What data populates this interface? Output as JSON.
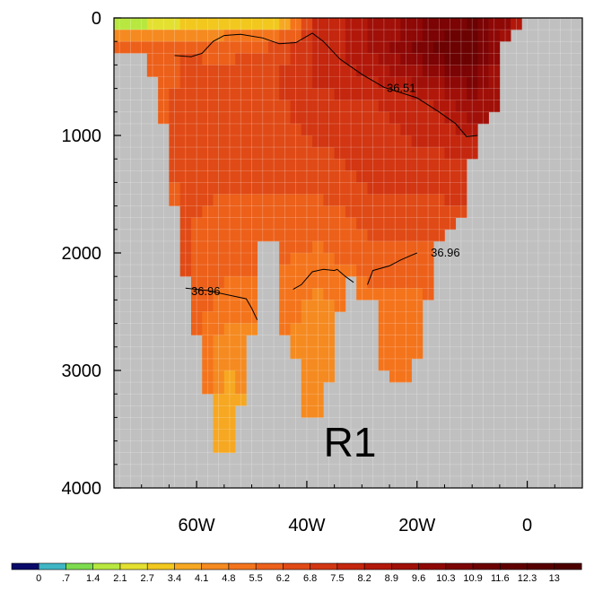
{
  "chart_data": {
    "type": "heatmap",
    "panel_label": "R1",
    "x_axis": {
      "range": [
        -75,
        10
      ],
      "tick_values": [
        -60,
        -40,
        -20,
        0
      ],
      "tick_labels": [
        "60W",
        "40W",
        "20W",
        "0"
      ]
    },
    "y_axis": {
      "range": [
        0,
        4000
      ],
      "inverted": true,
      "tick_values": [
        0,
        1000,
        2000,
        3000,
        4000
      ],
      "tick_labels": [
        "0",
        "1000",
        "2000",
        "3000",
        "4000"
      ]
    },
    "grid": true,
    "missing_color": "#c0c0c0",
    "colorbar": {
      "placement": "bottom",
      "labels": [
        "0",
        ".7",
        "1.4",
        "2.1",
        "2.7",
        "3.4",
        "4.1",
        "4.8",
        "5.5",
        "6.2",
        "6.8",
        "7.5",
        "8.2",
        "8.9",
        "9.6",
        "10.3",
        "10.9",
        "11.6",
        "12.3",
        "13"
      ],
      "colors": [
        "#0a0a6a",
        "#3fb6c4",
        "#7ddb4e",
        "#b8e840",
        "#e4e030",
        "#f2c81e",
        "#f6a822",
        "#f58a20",
        "#f4741c",
        "#ec601a",
        "#e04a16",
        "#d23612",
        "#c4260e",
        "#b2180a",
        "#a01008",
        "#8e0806",
        "#7c0404",
        "#6c0202",
        "#600000",
        "#560000",
        "#4c0000"
      ]
    },
    "depth_profile": [
      {
        "lon": -69,
        "max_depth": 250
      },
      {
        "lon": -66,
        "max_depth": 850
      },
      {
        "lon": -63,
        "max_depth": 1900
      },
      {
        "lon": -60,
        "max_depth": 2650
      },
      {
        "lon": -58,
        "max_depth": 3200
      },
      {
        "lon": -56,
        "max_depth": 3650
      },
      {
        "lon": -53,
        "max_depth": 3650
      },
      {
        "lon": -50,
        "max_depth": 2650
      },
      {
        "lon": -48,
        "max_depth": 1900
      },
      {
        "lon": -46,
        "max_depth": 1900
      },
      {
        "lon": -44,
        "max_depth": 2650
      },
      {
        "lon": -42,
        "max_depth": 2850
      },
      {
        "lon": -41,
        "max_depth": 3400
      },
      {
        "lon": -37,
        "max_depth": 3400
      },
      {
        "lon": -35,
        "max_depth": 2850
      },
      {
        "lon": -33,
        "max_depth": 2150
      },
      {
        "lon": -31,
        "max_depth": 2150
      },
      {
        "lon": -30,
        "max_depth": 2400
      },
      {
        "lon": -28,
        "max_depth": 2400
      },
      {
        "lon": -27,
        "max_depth": 2900
      },
      {
        "lon": -25,
        "max_depth": 3100
      },
      {
        "lon": -22,
        "max_depth": 3100
      },
      {
        "lon": -20,
        "max_depth": 2900
      },
      {
        "lon": -18,
        "max_depth": 2400
      },
      {
        "lon": -16,
        "max_depth": 1900
      },
      {
        "lon": -12,
        "max_depth": 1700
      },
      {
        "lon": -9,
        "max_depth": 1000
      },
      {
        "lon": -6,
        "max_depth": 800
      },
      {
        "lon": -4,
        "max_depth": 150
      },
      {
        "lon": 0,
        "max_depth": 0
      },
      {
        "lon": 5,
        "max_depth": 0
      }
    ],
    "temperature_field": [
      {
        "lon": -69,
        "profile": [
          [
            0,
            1.4
          ],
          [
            100,
            2.7
          ],
          [
            200,
            5.5
          ]
        ]
      },
      {
        "lon": -62,
        "profile": [
          [
            0,
            1.4
          ],
          [
            100,
            4.1
          ],
          [
            300,
            6.2
          ],
          [
            1000,
            6.8
          ],
          [
            1800,
            6.2
          ]
        ]
      },
      {
        "lon": -55,
        "profile": [
          [
            0,
            2.7
          ],
          [
            200,
            5.5
          ],
          [
            500,
            6.8
          ],
          [
            1500,
            6.2
          ],
          [
            2200,
            5.5
          ],
          [
            3000,
            4.1
          ],
          [
            3400,
            3.4
          ]
        ]
      },
      {
        "lon": -45,
        "profile": [
          [
            0,
            2.1
          ],
          [
            200,
            6.2
          ],
          [
            500,
            6.8
          ],
          [
            1500,
            6.2
          ],
          [
            2200,
            5.5
          ],
          [
            2700,
            4.8
          ]
        ]
      },
      {
        "lon": -38,
        "profile": [
          [
            0,
            7.5
          ],
          [
            300,
            7.5
          ],
          [
            600,
            7.5
          ],
          [
            1500,
            6.2
          ],
          [
            2300,
            4.8
          ],
          [
            3000,
            4.1
          ]
        ]
      },
      {
        "lon": -28,
        "profile": [
          [
            0,
            8.9
          ],
          [
            300,
            8.9
          ],
          [
            700,
            7.5
          ],
          [
            1500,
            6.8
          ],
          [
            2300,
            5.5
          ],
          [
            3000,
            4.8
          ]
        ]
      },
      {
        "lon": -18,
        "profile": [
          [
            0,
            10.3
          ],
          [
            300,
            10.9
          ],
          [
            700,
            8.2
          ],
          [
            1500,
            6.8
          ],
          [
            2300,
            5.5
          ]
        ]
      },
      {
        "lon": -10,
        "profile": [
          [
            0,
            10.9
          ],
          [
            300,
            11.6
          ],
          [
            700,
            9.6
          ],
          [
            1200,
            7.5
          ],
          [
            1600,
            6.8
          ]
        ]
      },
      {
        "lon": -4,
        "profile": [
          [
            0,
            10.3
          ],
          [
            100,
            8.9
          ]
        ]
      },
      {
        "lon": 1,
        "profile": [
          [
            0,
            8.2
          ],
          [
            150,
            5.5
          ]
        ]
      }
    ],
    "contours": [
      {
        "label": "36.51",
        "label_lon": -25.5,
        "label_depth": 600,
        "points": [
          [
            -64,
            320
          ],
          [
            -61,
            330
          ],
          [
            -59,
            300
          ],
          [
            -57,
            200
          ],
          [
            -55,
            150
          ],
          [
            -52,
            140
          ],
          [
            -48,
            170
          ],
          [
            -45,
            220
          ],
          [
            -42,
            210
          ],
          [
            -39,
            130
          ],
          [
            -37,
            200
          ],
          [
            -34,
            350
          ],
          [
            -30,
            480
          ],
          [
            -26,
            590
          ],
          [
            -20,
            680
          ],
          [
            -16,
            800
          ],
          [
            -13,
            900
          ],
          [
            -11,
            1010
          ],
          [
            -9,
            1000
          ]
        ]
      },
      {
        "label": "36.96",
        "label_lon": -61,
        "label_depth": 2330,
        "points": [
          [
            -62,
            2300
          ],
          [
            -58,
            2320
          ],
          [
            -53,
            2370
          ],
          [
            -51,
            2390
          ],
          [
            -50,
            2470
          ],
          [
            -49,
            2570
          ]
        ]
      },
      {
        "label": "",
        "points": [
          [
            -42.5,
            2310
          ],
          [
            -41,
            2270
          ],
          [
            -39,
            2160
          ],
          [
            -37,
            2140
          ],
          [
            -35,
            2150
          ],
          [
            -34.5,
            2140
          ],
          [
            -33,
            2200
          ],
          [
            -31.5,
            2250
          ]
        ]
      },
      {
        "label": "36.96",
        "label_lon": -17.5,
        "label_depth": 2000,
        "points": [
          [
            -29,
            2270
          ],
          [
            -28,
            2150
          ],
          [
            -25,
            2110
          ],
          [
            -23,
            2060
          ],
          [
            -21,
            2020
          ],
          [
            -20,
            2000
          ]
        ]
      }
    ]
  }
}
